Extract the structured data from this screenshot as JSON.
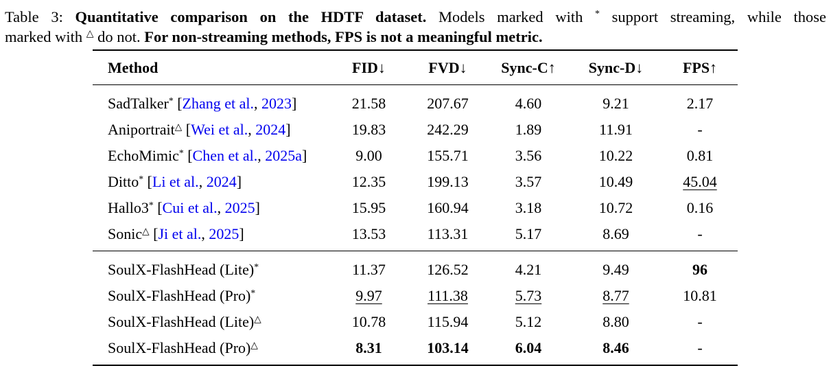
{
  "colors": {
    "citation_blue": "#0000EE",
    "text": "#000000",
    "background": "#FFFFFF"
  },
  "caption": {
    "line1": [
      {
        "t": "Table 3: ",
        "b": false
      },
      {
        "t": "Quantitative comparison on the HDTF dataset.",
        "b": true
      },
      {
        "t": " Models marked with ",
        "b": false
      },
      {
        "t": "*",
        "b": false,
        "sup": true
      },
      {
        "t": " support streaming, while those",
        "b": false
      }
    ],
    "line2": [
      {
        "t": "marked with ",
        "b": false
      },
      {
        "t": "△",
        "b": false,
        "sup": true
      },
      {
        "t": " do not. ",
        "b": false
      },
      {
        "t": "For non-streaming methods, FPS is not a meaningful metric.",
        "b": true
      }
    ]
  },
  "table": {
    "columns": [
      {
        "key": "method",
        "label": "Method"
      },
      {
        "key": "fid",
        "label": "FID↓"
      },
      {
        "key": "fvd",
        "label": "FVD↓"
      },
      {
        "key": "sync-c",
        "label": "Sync-C↑"
      },
      {
        "key": "sync-d",
        "label": "Sync-D↓"
      },
      {
        "key": "fps",
        "label": "FPS↑"
      }
    ],
    "groups": [
      {
        "rows": [
          {
            "method": "SadTalker",
            "marker": "*",
            "cite": {
              "authors": "Zhang et al.",
              "sep": ", ",
              "year": "2023"
            },
            "cells": [
              {
                "v": "21.58"
              },
              {
                "v": "207.67"
              },
              {
                "v": "4.60"
              },
              {
                "v": "9.21"
              },
              {
                "v": "2.17"
              }
            ]
          },
          {
            "method": "Aniportrait",
            "marker": "△",
            "cite": {
              "authors": "Wei et al.",
              "sep": ", ",
              "year": "2024"
            },
            "cells": [
              {
                "v": "19.83"
              },
              {
                "v": "242.29"
              },
              {
                "v": "1.89"
              },
              {
                "v": "11.91"
              },
              {
                "v": "-"
              }
            ]
          },
          {
            "method": "EchoMimic",
            "marker": "*",
            "cite": {
              "authors": "Chen et al.",
              "sep": ", ",
              "year": "2025a"
            },
            "cells": [
              {
                "v": "9.00"
              },
              {
                "v": "155.71"
              },
              {
                "v": "3.56"
              },
              {
                "v": "10.22"
              },
              {
                "v": "0.81"
              }
            ]
          },
          {
            "method": "Ditto",
            "marker": "*",
            "cite": {
              "authors": "Li et al.",
              "sep": ", ",
              "year": "2024"
            },
            "cells": [
              {
                "v": "12.35"
              },
              {
                "v": "199.13"
              },
              {
                "v": "3.57"
              },
              {
                "v": "10.49"
              },
              {
                "v": "45.04",
                "s": "u"
              }
            ]
          },
          {
            "method": "Hallo3",
            "marker": "*",
            "cite": {
              "authors": "Cui et al.",
              "sep": ", ",
              "year": "2025"
            },
            "cells": [
              {
                "v": "15.95"
              },
              {
                "v": "160.94"
              },
              {
                "v": "3.18"
              },
              {
                "v": "10.72"
              },
              {
                "v": "0.16"
              }
            ]
          },
          {
            "method": "Sonic",
            "marker": "△",
            "cite": {
              "authors": "Ji et al.",
              "sep": ", ",
              "year": "2025"
            },
            "cells": [
              {
                "v": "13.53"
              },
              {
                "v": "113.31"
              },
              {
                "v": "5.17"
              },
              {
                "v": "8.69"
              },
              {
                "v": "-"
              }
            ]
          }
        ]
      },
      {
        "rows": [
          {
            "method": "SoulX-FlashHead (Lite)",
            "marker": "*",
            "cite": null,
            "cells": [
              {
                "v": "11.37"
              },
              {
                "v": "126.52"
              },
              {
                "v": "4.21"
              },
              {
                "v": "9.49"
              },
              {
                "v": "96",
                "s": "b"
              }
            ]
          },
          {
            "method": "SoulX-FlashHead (Pro)",
            "marker": "*",
            "cite": null,
            "cells": [
              {
                "v": "9.97",
                "s": "u"
              },
              {
                "v": "111.38",
                "s": "u"
              },
              {
                "v": "5.73",
                "s": "u"
              },
              {
                "v": "8.77",
                "s": "u"
              },
              {
                "v": "10.81"
              }
            ]
          },
          {
            "method": "SoulX-FlashHead (Lite)",
            "marker": "△",
            "cite": null,
            "cells": [
              {
                "v": "10.78"
              },
              {
                "v": "115.94"
              },
              {
                "v": "5.12"
              },
              {
                "v": "8.80"
              },
              {
                "v": "-"
              }
            ]
          },
          {
            "method": "SoulX-FlashHead (Pro)",
            "marker": "△",
            "cite": null,
            "cells": [
              {
                "v": "8.31",
                "s": "b"
              },
              {
                "v": "103.14",
                "s": "b"
              },
              {
                "v": "6.04",
                "s": "b"
              },
              {
                "v": "8.46",
                "s": "b"
              },
              {
                "v": "-"
              }
            ]
          }
        ]
      }
    ]
  }
}
